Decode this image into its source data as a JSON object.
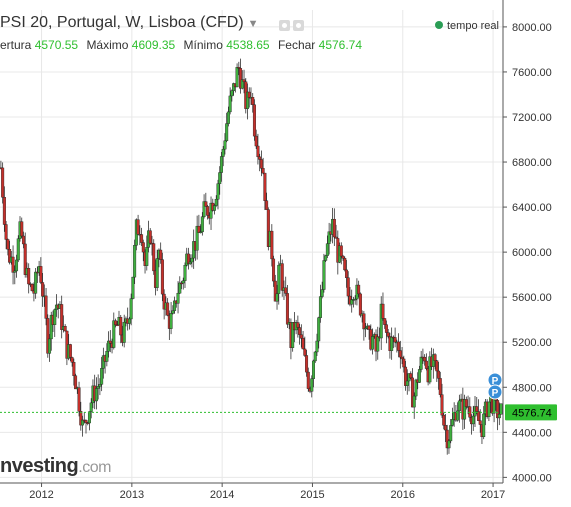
{
  "header": {
    "title": "PSI 20, Portugal, W, Lisboa (CFD)",
    "live_label": "tempo real"
  },
  "ohlc": {
    "open_label": "ertura",
    "open": "4570.55",
    "high_label": "Máximo",
    "high": "4609.35",
    "low_label": "Mínimo",
    "low": "4538.65",
    "close_label": "Fechar",
    "close": "4576.74"
  },
  "logo": {
    "text": "nvesting",
    "suffix": ".com"
  },
  "current_price_label": "4576.74",
  "markers": [
    "P",
    "P"
  ],
  "colors": {
    "up": "#3fae3f",
    "down": "#c4302b",
    "price_line": "#2fbf2f",
    "grid": "#e8e8e8",
    "marker": "#3a8fd8"
  },
  "chart_data": {
    "type": "candlestick",
    "interval": "weekly",
    "ylim": [
      3950,
      8150
    ],
    "yticks": [
      4000,
      4400,
      4800,
      5200,
      5600,
      6000,
      6400,
      6800,
      7200,
      7600,
      8000
    ],
    "ytick_labels": [
      "4000.00",
      "4400.00",
      "4800.00",
      "5200.00",
      "5600.00",
      "6000.00",
      "6400.00",
      "6800.00",
      "7200.00",
      "7600.00",
      "8000.00"
    ],
    "xlim": [
      2011.54,
      2017.11
    ],
    "xticks": [
      2012,
      2013,
      2014,
      2015,
      2016,
      2017
    ],
    "xtick_labels": [
      "2012",
      "2013",
      "2014",
      "2015",
      "2016",
      "2017"
    ],
    "grid": true,
    "last_close": 4576.74,
    "points": [
      [
        2011.55,
        6750
      ],
      [
        2011.62,
        6000
      ],
      [
        2011.7,
        5900
      ],
      [
        2011.77,
        6200
      ],
      [
        2011.85,
        5700
      ],
      [
        2011.92,
        5650
      ],
      [
        2011.97,
        5900
      ],
      [
        2012.0,
        5750
      ],
      [
        2012.07,
        5200
      ],
      [
        2012.12,
        5450
      ],
      [
        2012.17,
        5550
      ],
      [
        2012.22,
        5400
      ],
      [
        2012.28,
        5150
      ],
      [
        2012.35,
        5000
      ],
      [
        2012.4,
        4750
      ],
      [
        2012.43,
        4600
      ],
      [
        2012.46,
        4420
      ],
      [
        2012.52,
        4600
      ],
      [
        2012.58,
        4750
      ],
      [
        2012.65,
        4850
      ],
      [
        2012.72,
        5100
      ],
      [
        2012.78,
        5250
      ],
      [
        2012.84,
        5350
      ],
      [
        2012.9,
        5250
      ],
      [
        2012.96,
        5400
      ],
      [
        2013.0,
        5700
      ],
      [
        2013.05,
        6200
      ],
      [
        2013.1,
        6250
      ],
      [
        2013.15,
        5850
      ],
      [
        2013.2,
        6200
      ],
      [
        2013.26,
        5750
      ],
      [
        2013.3,
        6000
      ],
      [
        2013.34,
        5650
      ],
      [
        2013.4,
        5400
      ],
      [
        2013.46,
        5400
      ],
      [
        2013.5,
        5650
      ],
      [
        2013.56,
        5750
      ],
      [
        2013.62,
        6000
      ],
      [
        2013.68,
        6050
      ],
      [
        2013.74,
        6150
      ],
      [
        2013.8,
        6350
      ],
      [
        2013.86,
        6400
      ],
      [
        2013.92,
        6500
      ],
      [
        2013.96,
        6650
      ],
      [
        2014.0,
        6850
      ],
      [
        2014.04,
        7100
      ],
      [
        2014.08,
        7300
      ],
      [
        2014.13,
        7450
      ],
      [
        2014.18,
        7650
      ],
      [
        2014.22,
        7500
      ],
      [
        2014.27,
        7300
      ],
      [
        2014.32,
        7450
      ],
      [
        2014.36,
        7100
      ],
      [
        2014.41,
        6900
      ],
      [
        2014.46,
        6700
      ],
      [
        2014.5,
        6200
      ],
      [
        2014.55,
        6000
      ],
      [
        2014.6,
        5550
      ],
      [
        2014.64,
        5900
      ],
      [
        2014.68,
        5650
      ],
      [
        2014.72,
        5450
      ],
      [
        2014.76,
        5200
      ],
      [
        2014.8,
        5350
      ],
      [
        2014.86,
        5250
      ],
      [
        2014.92,
        5000
      ],
      [
        2014.97,
        4800
      ],
      [
        2015.0,
        5000
      ],
      [
        2015.05,
        5300
      ],
      [
        2015.1,
        5600
      ],
      [
        2015.14,
        5950
      ],
      [
        2015.18,
        6100
      ],
      [
        2015.22,
        6250
      ],
      [
        2015.28,
        6000
      ],
      [
        2015.34,
        5850
      ],
      [
        2015.4,
        5600
      ],
      [
        2015.46,
        5700
      ],
      [
        2015.52,
        5550
      ],
      [
        2015.58,
        5400
      ],
      [
        2015.62,
        5200
      ],
      [
        2015.66,
        5250
      ],
      [
        2015.71,
        5100
      ],
      [
        2015.76,
        5450
      ],
      [
        2015.8,
        5300
      ],
      [
        2015.86,
        5200
      ],
      [
        2015.92,
        5200
      ],
      [
        2015.98,
        5150
      ],
      [
        2016.02,
        4900
      ],
      [
        2016.06,
        4850
      ],
      [
        2016.12,
        4700
      ],
      [
        2016.18,
        4950
      ],
      [
        2016.24,
        5100
      ],
      [
        2016.28,
        4950
      ],
      [
        2016.33,
        5000
      ],
      [
        2016.38,
        4900
      ],
      [
        2016.42,
        4750
      ],
      [
        2016.46,
        4450
      ],
      [
        2016.5,
        4350
      ],
      [
        2016.54,
        4450
      ],
      [
        2016.6,
        4650
      ],
      [
        2016.66,
        4600
      ],
      [
        2016.72,
        4650
      ],
      [
        2016.78,
        4550
      ],
      [
        2016.84,
        4500
      ],
      [
        2016.88,
        4450
      ],
      [
        2016.94,
        4650
      ],
      [
        2016.98,
        4700
      ],
      [
        2017.02,
        4600
      ],
      [
        2017.06,
        4576.74
      ]
    ]
  }
}
